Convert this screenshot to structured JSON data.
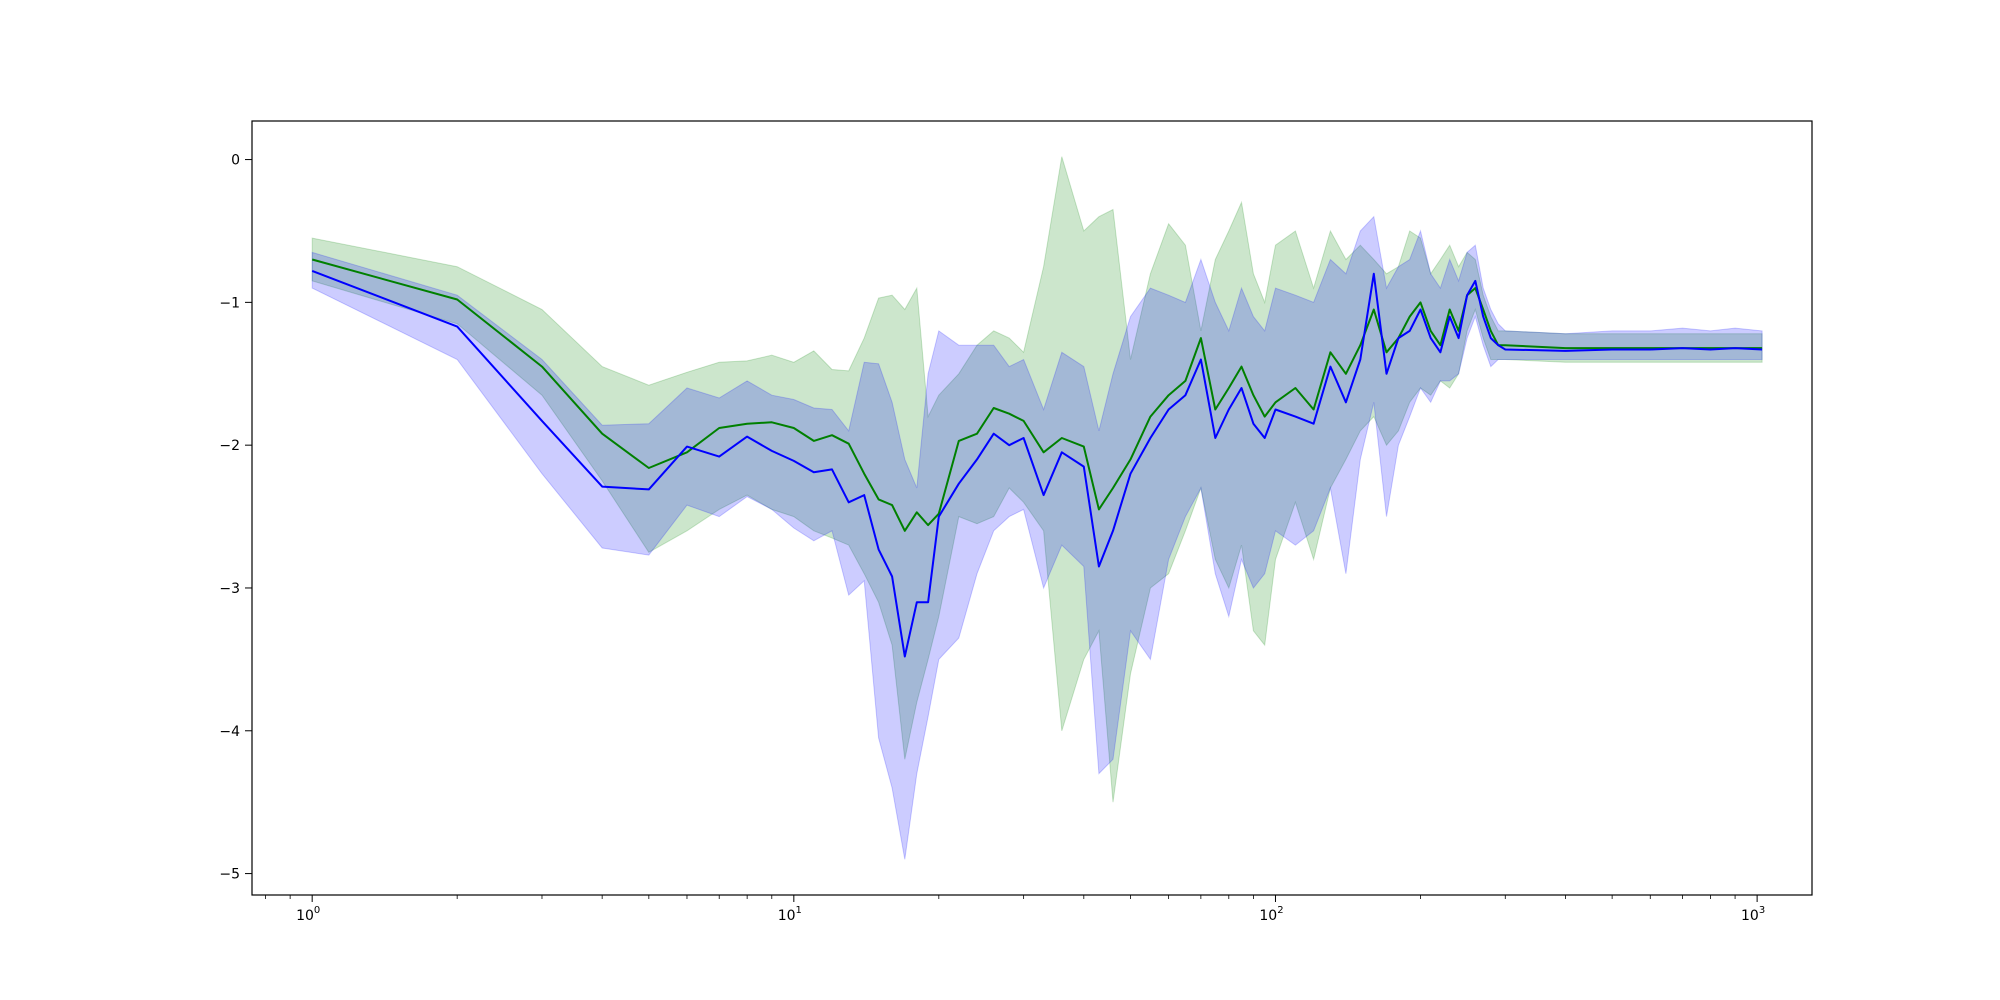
{
  "chart_data": {
    "type": "line",
    "title": "",
    "xlabel": "",
    "ylabel": "",
    "xscale": "log",
    "xlim": [
      0.75,
      1300
    ],
    "ylim": [
      -5.15,
      0.27
    ],
    "grid": false,
    "legend": "none",
    "x_ticks": [
      {
        "value": 1,
        "base": "10",
        "exp": "0"
      },
      {
        "value": 10,
        "base": "10",
        "exp": "1"
      },
      {
        "value": 100,
        "base": "10",
        "exp": "2"
      },
      {
        "value": 1000,
        "base": "10",
        "exp": "3"
      }
    ],
    "y_ticks": [
      {
        "value": 0,
        "label": "0"
      },
      {
        "value": -1,
        "label": "−1"
      },
      {
        "value": -2,
        "label": "−2"
      },
      {
        "value": -3,
        "label": "−3"
      },
      {
        "value": -4,
        "label": "−4"
      },
      {
        "value": -5,
        "label": "−5"
      }
    ],
    "colors": {
      "green_line": "#008000",
      "blue_line": "#0000ff",
      "green_band": "#008000",
      "blue_band": "#0000ff",
      "band_opacity": 0.2
    },
    "series": [
      {
        "color": "green",
        "x": [
          1,
          2,
          3,
          4,
          5,
          6,
          7,
          8,
          9,
          10,
          11,
          12,
          13,
          14,
          15,
          16,
          17,
          18,
          19,
          20,
          22,
          24,
          26,
          28,
          30,
          33,
          36,
          40,
          43,
          46,
          50,
          55,
          60,
          65,
          70,
          75,
          80,
          85,
          90,
          95,
          100,
          110,
          120,
          130,
          140,
          150,
          160,
          170,
          180,
          190,
          200,
          210,
          220,
          230,
          240,
          250,
          260,
          270,
          280,
          290,
          300,
          400,
          500,
          600,
          700,
          800,
          900,
          1024
        ],
        "y": [
          -0.7,
          -0.98,
          -1.45,
          -1.92,
          -2.16,
          -2.05,
          -1.88,
          -1.85,
          -1.84,
          -1.88,
          -1.97,
          -1.93,
          -1.99,
          -2.2,
          -2.38,
          -2.42,
          -2.6,
          -2.47,
          -2.56,
          -2.48,
          -1.97,
          -1.92,
          -1.74,
          -1.78,
          -1.83,
          -2.05,
          -1.95,
          -2.01,
          -2.45,
          -2.3,
          -2.1,
          -1.8,
          -1.65,
          -1.55,
          -1.25,
          -1.75,
          -1.6,
          -1.45,
          -1.65,
          -1.8,
          -1.7,
          -1.6,
          -1.75,
          -1.35,
          -1.5,
          -1.3,
          -1.05,
          -1.35,
          -1.25,
          -1.1,
          -1.0,
          -1.2,
          -1.3,
          -1.05,
          -1.2,
          -0.95,
          -0.9,
          -1.05,
          -1.2,
          -1.3,
          -1.3,
          -1.32,
          -1.32,
          -1.32,
          -1.32,
          -1.32,
          -1.32,
          -1.32
        ],
        "lower": [
          -0.85,
          -1.15,
          -1.65,
          -2.25,
          -2.75,
          -2.6,
          -2.45,
          -2.35,
          -2.45,
          -2.5,
          -2.6,
          -2.65,
          -2.7,
          -2.9,
          -3.1,
          -3.4,
          -4.2,
          -3.8,
          -3.5,
          -3.2,
          -2.5,
          -2.55,
          -2.5,
          -2.3,
          -2.4,
          -2.6,
          -4.0,
          -3.5,
          -3.3,
          -4.5,
          -3.6,
          -3.0,
          -2.9,
          -2.6,
          -2.3,
          -2.8,
          -3.0,
          -2.7,
          -3.3,
          -3.4,
          -2.8,
          -2.4,
          -2.8,
          -2.3,
          -2.1,
          -1.9,
          -1.8,
          -2.0,
          -1.9,
          -1.7,
          -1.6,
          -1.65,
          -1.55,
          -1.6,
          -1.5,
          -1.2,
          -1.05,
          -1.25,
          -1.4,
          -1.4,
          -1.4,
          -1.42,
          -1.42,
          -1.42,
          -1.42,
          -1.42,
          -1.42,
          -1.42
        ],
        "upper": [
          -0.55,
          -0.75,
          -1.05,
          -1.45,
          -1.58,
          -1.49,
          -1.42,
          -1.41,
          -1.37,
          -1.42,
          -1.34,
          -1.47,
          -1.48,
          -1.25,
          -0.97,
          -0.95,
          -1.05,
          -0.9,
          -1.8,
          -1.65,
          -1.5,
          -1.3,
          -1.2,
          -1.25,
          -1.35,
          -0.75,
          0.02,
          -0.5,
          -0.4,
          -0.35,
          -1.4,
          -0.8,
          -0.45,
          -0.6,
          -1.2,
          -0.7,
          -0.5,
          -0.3,
          -0.8,
          -1.0,
          -0.6,
          -0.5,
          -0.9,
          -0.5,
          -0.7,
          -0.6,
          -0.7,
          -0.8,
          -0.75,
          -0.5,
          -0.55,
          -0.8,
          -0.7,
          -0.6,
          -0.75,
          -0.65,
          -0.7,
          -0.95,
          -1.1,
          -1.2,
          -1.2,
          -1.22,
          -1.22,
          -1.22,
          -1.22,
          -1.22,
          -1.22,
          -1.22
        ]
      },
      {
        "color": "blue",
        "x": [
          1,
          2,
          3,
          4,
          5,
          6,
          7,
          8,
          9,
          10,
          11,
          12,
          13,
          14,
          15,
          16,
          17,
          18,
          19,
          20,
          22,
          24,
          26,
          28,
          30,
          33,
          36,
          40,
          43,
          46,
          50,
          55,
          60,
          65,
          70,
          75,
          80,
          85,
          90,
          95,
          100,
          110,
          120,
          130,
          140,
          150,
          160,
          170,
          180,
          190,
          200,
          210,
          220,
          230,
          240,
          250,
          260,
          270,
          280,
          290,
          300,
          400,
          500,
          600,
          700,
          800,
          900,
          1024
        ],
        "y": [
          -0.78,
          -1.17,
          -1.83,
          -2.29,
          -2.31,
          -2.01,
          -2.08,
          -1.94,
          -2.04,
          -2.11,
          -2.19,
          -2.17,
          -2.4,
          -2.35,
          -2.73,
          -2.92,
          -3.48,
          -3.1,
          -3.1,
          -2.5,
          -2.27,
          -2.1,
          -1.92,
          -2.0,
          -1.95,
          -2.35,
          -2.05,
          -2.15,
          -2.85,
          -2.6,
          -2.2,
          -1.95,
          -1.75,
          -1.65,
          -1.4,
          -1.95,
          -1.75,
          -1.6,
          -1.85,
          -1.95,
          -1.75,
          -1.8,
          -1.85,
          -1.45,
          -1.7,
          -1.4,
          -0.8,
          -1.5,
          -1.25,
          -1.2,
          -1.05,
          -1.25,
          -1.35,
          -1.1,
          -1.25,
          -0.95,
          -0.85,
          -1.1,
          -1.25,
          -1.3,
          -1.33,
          -1.34,
          -1.33,
          -1.33,
          -1.32,
          -1.33,
          -1.32,
          -1.33
        ],
        "lower": [
          -0.9,
          -1.4,
          -2.2,
          -2.72,
          -2.77,
          -2.42,
          -2.5,
          -2.36,
          -2.45,
          -2.58,
          -2.67,
          -2.6,
          -3.05,
          -2.95,
          -4.05,
          -4.4,
          -4.9,
          -4.3,
          -3.9,
          -3.5,
          -3.35,
          -2.9,
          -2.6,
          -2.5,
          -2.45,
          -3.0,
          -2.7,
          -2.85,
          -4.3,
          -4.2,
          -3.3,
          -3.5,
          -2.8,
          -2.5,
          -2.3,
          -2.9,
          -3.2,
          -2.8,
          -3.0,
          -2.9,
          -2.6,
          -2.7,
          -2.6,
          -2.3,
          -2.9,
          -2.1,
          -1.7,
          -2.5,
          -2.0,
          -1.8,
          -1.6,
          -1.7,
          -1.55,
          -1.55,
          -1.5,
          -1.25,
          -1.1,
          -1.3,
          -1.45,
          -1.4,
          -1.4,
          -1.4,
          -1.4,
          -1.4,
          -1.4,
          -1.4,
          -1.4,
          -1.4
        ],
        "upper": [
          -0.65,
          -0.95,
          -1.4,
          -1.86,
          -1.85,
          -1.6,
          -1.67,
          -1.55,
          -1.65,
          -1.68,
          -1.74,
          -1.75,
          -1.9,
          -1.42,
          -1.43,
          -1.7,
          -2.1,
          -2.3,
          -1.5,
          -1.2,
          -1.3,
          -1.3,
          -1.3,
          -1.45,
          -1.4,
          -1.75,
          -1.35,
          -1.45,
          -1.9,
          -1.5,
          -1.1,
          -0.9,
          -0.95,
          -1.0,
          -0.7,
          -1.0,
          -1.2,
          -0.9,
          -1.1,
          -1.2,
          -0.9,
          -0.95,
          -1.0,
          -0.7,
          -0.8,
          -0.5,
          -0.4,
          -0.9,
          -0.75,
          -0.7,
          -0.5,
          -0.8,
          -0.9,
          -0.7,
          -0.85,
          -0.65,
          -0.6,
          -0.9,
          -1.05,
          -1.15,
          -1.2,
          -1.22,
          -1.2,
          -1.2,
          -1.18,
          -1.2,
          -1.18,
          -1.2
        ]
      }
    ]
  }
}
